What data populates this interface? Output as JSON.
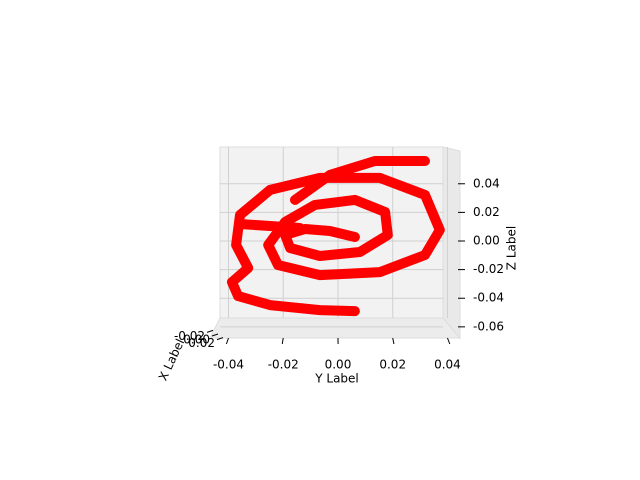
{
  "chart_data": {
    "type": "line3d",
    "color": "#ff0000",
    "grid": true,
    "xlabel": "X Label",
    "ylabel": "Y Label",
    "zlabel": "Z Label",
    "ylim": [
      -0.0431,
      0.0391
    ],
    "zlim": [
      -0.0622,
      0.065
    ],
    "yticks": [
      -0.04,
      -0.02,
      {
        "value": 0,
        "label": "0.00"
      },
      0.02,
      0.04
    ],
    "zticks": [
      -0.06,
      -0.04,
      -0.02,
      {
        "value": 0,
        "label": "0.00"
      },
      0.02,
      0.04
    ],
    "xticks": [
      -0.02,
      {
        "value": 0,
        "label": "0.00"
      },
      0.02
    ],
    "y": [
      0.0062,
      -0.0029,
      -0.012,
      -0.0193,
      -0.0175,
      -0.0066,
      0.008,
      0.0182,
      0.0172,
      0.0062,
      -0.0084,
      -0.0193,
      -0.0255,
      -0.0219,
      -0.0066,
      0.0153,
      0.0318,
      0.0372,
      0.0318,
      0.0153,
      -0.0066,
      -0.0248,
      -0.0358,
      -0.0372,
      -0.0328,
      -0.0387,
      -0.0365,
      -0.0248,
      -0.0066,
      0.0062,
      null,
      -0.0157,
      -0.0029,
      0.0135,
      0.0318,
      null,
      -0.0358,
      -0.0248,
      -0.0139
    ],
    "z": [
      0.0028,
      0.007,
      0.0084,
      0.0042,
      -0.0049,
      -0.0105,
      -0.0077,
      0.0042,
      0.0203,
      0.0287,
      0.0252,
      0.0133,
      -0.0028,
      -0.0168,
      -0.0238,
      -0.0217,
      -0.0098,
      0.0077,
      0.0322,
      0.0441,
      0.0441,
      0.0357,
      0.0182,
      -0.0028,
      -0.0189,
      -0.0287,
      -0.0385,
      -0.0448,
      -0.0483,
      -0.049,
      null,
      0.0287,
      0.0462,
      0.0559,
      0.0559,
      null,
      0.0119,
      0.0105,
      0.0091
    ]
  }
}
